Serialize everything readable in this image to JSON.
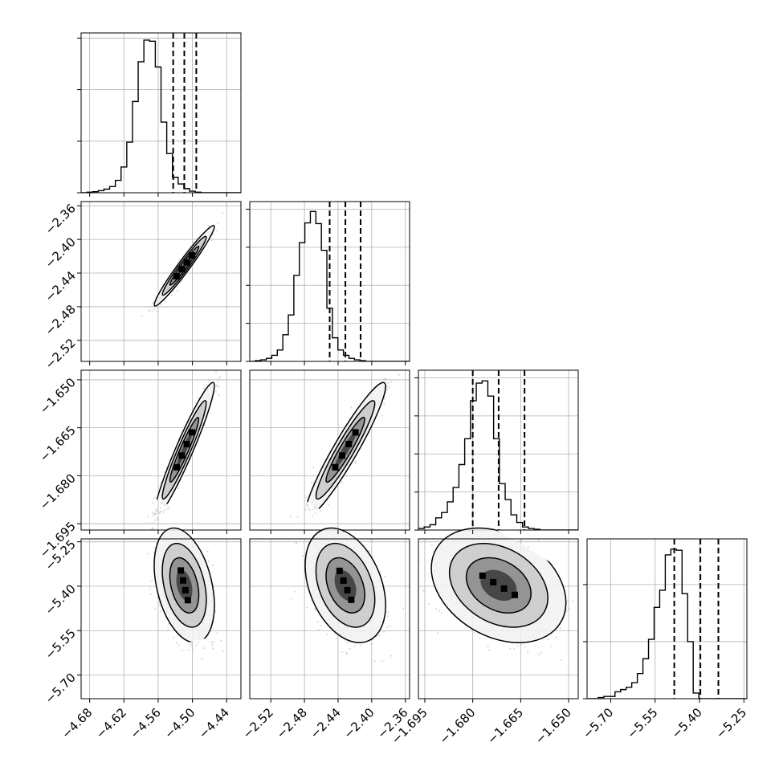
{
  "chart_data": {
    "type": "corner",
    "grid": true,
    "params": [
      {
        "range": [
          -4.695,
          -4.415
        ],
        "ticks": [
          -4.68,
          -4.62,
          -4.56,
          -4.5,
          -4.44
        ],
        "tick_labels": [
          "−4.68",
          "−4.62",
          "−4.56",
          "−4.50",
          "−4.44"
        ],
        "quantiles": [
          -4.5337,
          -4.5142,
          -4.4932
        ],
        "hist": {
          "bin_start": -4.695,
          "bin_width": 0.01,
          "counts": [
            0,
            1,
            2,
            4,
            7,
            12,
            24,
            50,
            98,
            177,
            254,
            296,
            294,
            244,
            137,
            76,
            30,
            17,
            8,
            3,
            1,
            0,
            0,
            0,
            0,
            0,
            0,
            0
          ],
          "ymax": 310,
          "yticks": [
            0,
            100,
            200,
            300
          ]
        }
      },
      {
        "range": [
          -2.545,
          -2.355
        ],
        "ticks": [
          -2.52,
          -2.48,
          -2.44,
          -2.4,
          -2.36
        ],
        "tick_labels": [
          "−2.52",
          "−2.48",
          "−2.44",
          "−2.40",
          "−2.36"
        ],
        "quantiles": [
          -2.45,
          -2.4313,
          -2.4132
        ],
        "hist": {
          "bin_start": -2.545,
          "bin_width": 0.00655,
          "counts": [
            0,
            1,
            2,
            4,
            8,
            15,
            35,
            61,
            113,
            156,
            182,
            197,
            181,
            146,
            70,
            31,
            15,
            8,
            4,
            2,
            1,
            0,
            0,
            0,
            0,
            0,
            0,
            0,
            0
          ],
          "ymax": 210,
          "yticks": [
            0,
            50,
            100,
            150,
            200
          ]
        }
      },
      {
        "range": [
          -1.697,
          -1.647
        ],
        "ticks": [
          -1.695,
          -1.68,
          -1.665,
          -1.65
        ],
        "tick_labels": [
          "−1.695",
          "−1.680",
          "−1.665",
          "−1.650"
        ],
        "quantiles": [
          -1.68,
          -1.6719,
          -1.6638
        ],
        "hist": {
          "bin_start": -1.697,
          "bin_width": 0.00181,
          "counts": [
            2,
            4,
            7,
            16,
            23,
            37,
            56,
            86,
            120,
            170,
            193,
            196,
            176,
            120,
            61,
            40,
            20,
            10,
            4,
            2,
            1,
            0,
            0,
            0,
            0,
            0,
            0,
            0
          ],
          "ymax": 210,
          "yticks": [
            0,
            50,
            100,
            150,
            200
          ]
        }
      },
      {
        "range": [
          -5.78,
          -5.24
        ],
        "ticks": [
          -5.7,
          -5.55,
          -5.4,
          -5.25
        ],
        "tick_labels": [
          "−5.70",
          "−5.55",
          "−5.40",
          "−5.25"
        ],
        "quantiles": [
          -5.4853,
          -5.397,
          -5.3363
        ],
        "hist": {
          "bin_start": -5.78,
          "bin_width": 0.01888,
          "counts": [
            0,
            0,
            1,
            2,
            2,
            6,
            8,
            10,
            14,
            22,
            35,
            52,
            80,
            95,
            126,
            131,
            130,
            92,
            50,
            5,
            0,
            0,
            0,
            0,
            0,
            0,
            0,
            0,
            0
          ],
          "ymax": 140,
          "yticks": [
            0,
            50,
            100
          ]
        }
      }
    ],
    "pairs": [
      {
        "row": 1,
        "col": 0,
        "rho": 0.97,
        "tilt": -0.62
      },
      {
        "row": 2,
        "col": 0,
        "rho": 0.95,
        "tilt": -0.62
      },
      {
        "row": 2,
        "col": 1,
        "rho": 0.94,
        "tilt": -0.62
      },
      {
        "row": 3,
        "col": 0,
        "rho": -0.35,
        "tilt": 0.35
      },
      {
        "row": 3,
        "col": 1,
        "rho": -0.35,
        "tilt": 0.35
      },
      {
        "row": 3,
        "col": 2,
        "rho": -0.3,
        "tilt": 0.25
      }
    ],
    "colors": {
      "points": "#bdbdbd",
      "line": "#000000",
      "grid": "#b0b0b0",
      "fill_levels": [
        "#f2f2f2",
        "#c8c8c8",
        "#8a8a8a",
        "#3a3a3a"
      ]
    }
  }
}
